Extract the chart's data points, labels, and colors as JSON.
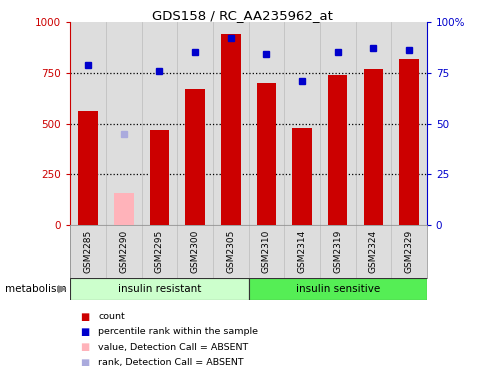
{
  "title": "GDS158 / RC_AA235962_at",
  "samples": [
    "GSM2285",
    "GSM2290",
    "GSM2295",
    "GSM2300",
    "GSM2305",
    "GSM2310",
    "GSM2314",
    "GSM2319",
    "GSM2324",
    "GSM2329"
  ],
  "bar_values": [
    560,
    160,
    470,
    670,
    940,
    700,
    480,
    740,
    770,
    820
  ],
  "bar_colors": [
    "#cc0000",
    "#ffb3ba",
    "#cc0000",
    "#cc0000",
    "#cc0000",
    "#cc0000",
    "#cc0000",
    "#cc0000",
    "#cc0000",
    "#cc0000"
  ],
  "rank_values": [
    79,
    null,
    76,
    85,
    92,
    84,
    71,
    85,
    87,
    86
  ],
  "rank_absent": [
    null,
    45,
    null,
    null,
    null,
    null,
    null,
    null,
    null,
    null
  ],
  "groups": [
    {
      "label": "insulin resistant",
      "start": 0,
      "end": 5,
      "color": "#ccffcc"
    },
    {
      "label": "insulin sensitive",
      "start": 5,
      "end": 10,
      "color": "#55ee55"
    }
  ],
  "group_label": "metabolism",
  "ylim_left": [
    0,
    1000
  ],
  "ylim_right": [
    0,
    100
  ],
  "yticks_left": [
    0,
    250,
    500,
    750,
    1000
  ],
  "yticks_right": [
    0,
    25,
    50,
    75,
    100
  ],
  "legend_items": [
    {
      "label": "count",
      "color": "#cc0000"
    },
    {
      "label": "percentile rank within the sample",
      "color": "#0000cc"
    },
    {
      "label": "value, Detection Call = ABSENT",
      "color": "#ffb3ba"
    },
    {
      "label": "rank, Detection Call = ABSENT",
      "color": "#aaaadd"
    }
  ],
  "bar_width": 0.55,
  "background_color": "#ffffff",
  "plot_bg_color": "#dddddd",
  "rank_color": "#0000cc",
  "rank_absent_color": "#aaaadd",
  "hline_color": "#000000",
  "vline_color": "#bbbbbb"
}
